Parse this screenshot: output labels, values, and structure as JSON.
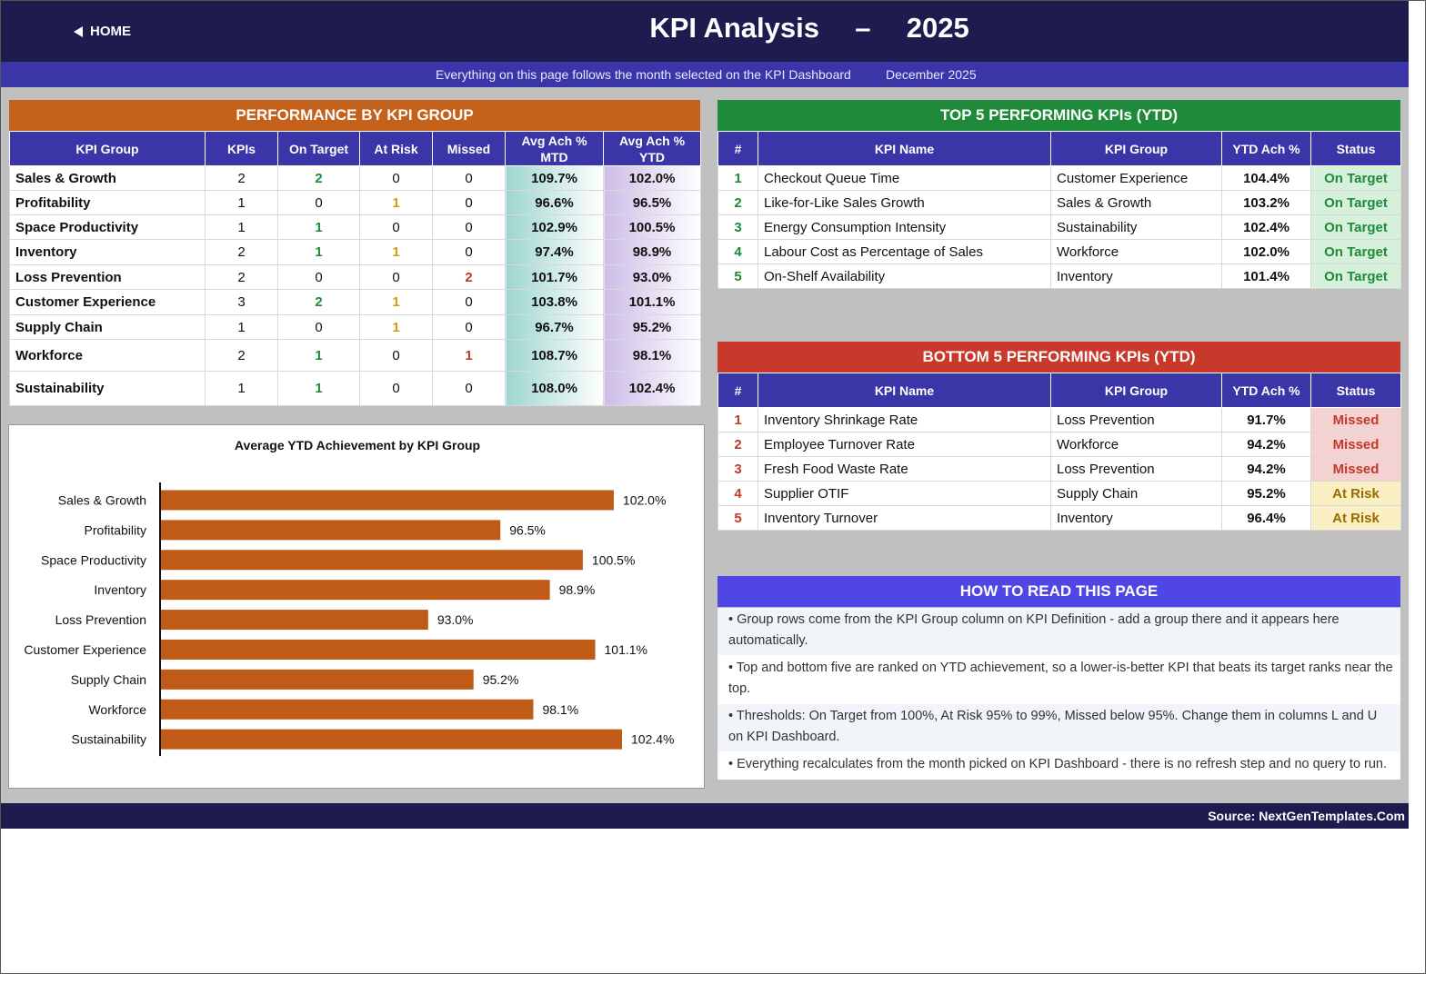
{
  "header": {
    "home_label": "HOME",
    "title_main": "KPI Analysis",
    "title_dash": "–",
    "title_year": "2025",
    "subtitle": "Everything on this page follows the month selected on the KPI Dashboard",
    "selected_month": "December 2025"
  },
  "colors": {
    "navy": "#1e1b4f",
    "indigo": "#3a36a8",
    "orange_banner": "#c4621c",
    "green_banner": "#1f8a3a",
    "red_banner": "#c8392b",
    "violet_banner": "#4f46e5",
    "bar": "#c05a17"
  },
  "group_table": {
    "banner": "PERFORMANCE BY KPI GROUP",
    "headers": [
      "KPI Group",
      "KPIs",
      "On Target",
      "At Risk",
      "Missed",
      "Avg Ach % MTD",
      "Avg Ach % YTD"
    ],
    "rows": [
      {
        "group": "Sales & Growth",
        "kpis": "2",
        "on": "2",
        "risk": "0",
        "missed": "0",
        "mtd": "109.7%",
        "ytd": "102.0%"
      },
      {
        "group": "Profitability",
        "kpis": "1",
        "on": "0",
        "risk": "1",
        "missed": "0",
        "mtd": "96.6%",
        "ytd": "96.5%"
      },
      {
        "group": "Space Productivity",
        "kpis": "1",
        "on": "1",
        "risk": "0",
        "missed": "0",
        "mtd": "102.9%",
        "ytd": "100.5%"
      },
      {
        "group": "Inventory",
        "kpis": "2",
        "on": "1",
        "risk": "1",
        "missed": "0",
        "mtd": "97.4%",
        "ytd": "98.9%"
      },
      {
        "group": "Loss Prevention",
        "kpis": "2",
        "on": "0",
        "risk": "0",
        "missed": "2",
        "mtd": "101.7%",
        "ytd": "93.0%"
      },
      {
        "group": "Customer Experience",
        "kpis": "3",
        "on": "2",
        "risk": "1",
        "missed": "0",
        "mtd": "103.8%",
        "ytd": "101.1%"
      },
      {
        "group": "Supply Chain",
        "kpis": "1",
        "on": "0",
        "risk": "1",
        "missed": "0",
        "mtd": "96.7%",
        "ytd": "95.2%"
      },
      {
        "group": "Workforce",
        "kpis": "2",
        "on": "1",
        "risk": "0",
        "missed": "1",
        "mtd": "108.7%",
        "ytd": "98.1%"
      },
      {
        "group": "Sustainability",
        "kpis": "1",
        "on": "1",
        "risk": "0",
        "missed": "0",
        "mtd": "108.0%",
        "ytd": "102.4%"
      }
    ]
  },
  "top5": {
    "banner": "TOP 5 PERFORMING KPIs  (YTD)",
    "headers": [
      "#",
      "KPI Name",
      "KPI Group",
      "YTD Ach %",
      "Status"
    ],
    "rows": [
      {
        "rank": "1",
        "name": "Checkout Queue Time",
        "group": "Customer Experience",
        "ytd": "104.4%",
        "status": "On Target"
      },
      {
        "rank": "2",
        "name": "Like-for-Like Sales Growth",
        "group": "Sales & Growth",
        "ytd": "103.2%",
        "status": "On Target"
      },
      {
        "rank": "3",
        "name": "Energy Consumption Intensity",
        "group": "Sustainability",
        "ytd": "102.4%",
        "status": "On Target"
      },
      {
        "rank": "4",
        "name": "Labour Cost as Percentage of Sales",
        "group": "Workforce",
        "ytd": "102.0%",
        "status": "On Target"
      },
      {
        "rank": "5",
        "name": "On-Shelf Availability",
        "group": "Inventory",
        "ytd": "101.4%",
        "status": "On Target"
      }
    ]
  },
  "bottom5": {
    "banner": "BOTTOM 5 PERFORMING KPIs  (YTD)",
    "headers": [
      "#",
      "KPI Name",
      "KPI Group",
      "YTD Ach %",
      "Status"
    ],
    "rows": [
      {
        "rank": "1",
        "name": "Inventory Shrinkage Rate",
        "group": "Loss Prevention",
        "ytd": "91.7%",
        "status": "Missed"
      },
      {
        "rank": "2",
        "name": "Employee Turnover Rate",
        "group": "Workforce",
        "ytd": "94.2%",
        "status": "Missed"
      },
      {
        "rank": "3",
        "name": "Fresh Food Waste Rate",
        "group": "Loss Prevention",
        "ytd": "94.2%",
        "status": "Missed"
      },
      {
        "rank": "4",
        "name": "Supplier OTIF",
        "group": "Supply Chain",
        "ytd": "95.2%",
        "status": "At Risk"
      },
      {
        "rank": "5",
        "name": "Inventory Turnover",
        "group": "Inventory",
        "ytd": "96.4%",
        "status": "At Risk"
      }
    ]
  },
  "howto": {
    "banner": "HOW TO READ THIS PAGE",
    "items": [
      "•  Group rows come from the KPI Group column on KPI Definition - add a group there and it appears here automatically.",
      "•  Top and bottom five are ranked on YTD achievement, so a lower-is-better KPI that beats its target ranks near the top.",
      "•  Thresholds: On Target from 100%, At Risk 95% to 99%, Missed below 95%. Change them in columns L and U on KPI Dashboard.",
      "•  Everything recalculates from the month picked on KPI Dashboard - there is no refresh step and no query to run."
    ]
  },
  "chart_data": {
    "type": "bar",
    "orientation": "horizontal",
    "title": "Average YTD Achievement by KPI Group",
    "categories": [
      "Sales & Growth",
      "Profitability",
      "Space Productivity",
      "Inventory",
      "Loss Prevention",
      "Customer Experience",
      "Supply Chain",
      "Workforce",
      "Sustainability"
    ],
    "values": [
      102.0,
      96.5,
      100.5,
      98.9,
      93.0,
      101.1,
      95.2,
      98.1,
      102.4
    ],
    "labels": [
      "102.0%",
      "96.5%",
      "100.5%",
      "98.9%",
      "93.0%",
      "101.1%",
      "95.2%",
      "98.1%",
      "102.4%"
    ],
    "xlim": [
      80,
      104
    ],
    "grid": false,
    "legend": "none"
  },
  "footer": {
    "source": "Source: NextGenTemplates.Com"
  }
}
